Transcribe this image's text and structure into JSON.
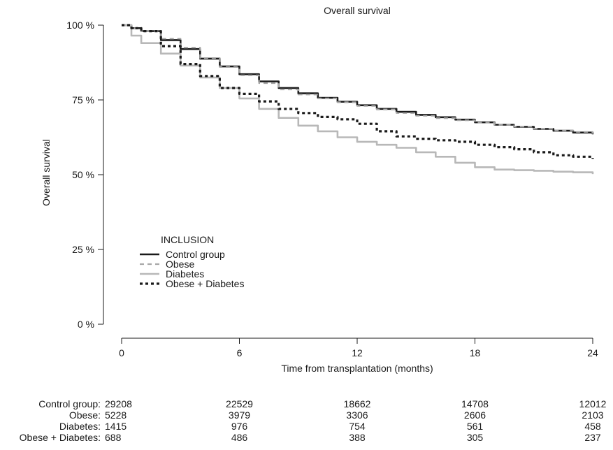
{
  "chart_data": {
    "type": "line",
    "title": "Overall survival",
    "xlabel": "Time from transplantation (months)",
    "ylabel": "Overall survival",
    "xlim": [
      0,
      24
    ],
    "ylim": [
      0,
      1
    ],
    "x_ticks": [
      0,
      6,
      12,
      18,
      24
    ],
    "y_ticks": [
      {
        "value": 0,
        "label": "0 %"
      },
      {
        "value": 0.25,
        "label": "25 %"
      },
      {
        "value": 0.5,
        "label": "50 %"
      },
      {
        "value": 0.75,
        "label": "75 %"
      },
      {
        "value": 1,
        "label": "100 %"
      }
    ],
    "grid": false,
    "legend": {
      "title": "INCLUSION",
      "position": "lower-left"
    },
    "series": [
      {
        "name": "Control group",
        "color": "#1a1a1a",
        "style": "solid",
        "x": [
          0,
          0.5,
          1,
          2,
          3,
          4,
          5,
          6,
          7,
          8,
          9,
          10,
          11,
          12,
          13,
          14,
          15,
          16,
          17,
          18,
          19,
          20,
          21,
          22,
          23,
          24
        ],
        "y": [
          1.0,
          0.99,
          0.98,
          0.95,
          0.92,
          0.888,
          0.862,
          0.836,
          0.812,
          0.79,
          0.772,
          0.757,
          0.744,
          0.732,
          0.72,
          0.71,
          0.7,
          0.692,
          0.684,
          0.675,
          0.667,
          0.66,
          0.653,
          0.647,
          0.641,
          0.635
        ]
      },
      {
        "name": "Obese",
        "color": "#a8a8a8",
        "style": "dashed",
        "x": [
          0,
          0.5,
          1,
          2,
          3,
          4,
          5,
          6,
          7,
          8,
          9,
          10,
          11,
          12,
          13,
          14,
          15,
          16,
          17,
          18,
          19,
          20,
          21,
          22,
          23,
          24
        ],
        "y": [
          1.0,
          0.99,
          0.98,
          0.955,
          0.925,
          0.89,
          0.86,
          0.832,
          0.806,
          0.785,
          0.768,
          0.755,
          0.742,
          0.73,
          0.718,
          0.706,
          0.697,
          0.689,
          0.682,
          0.674,
          0.667,
          0.661,
          0.654,
          0.648,
          0.643,
          0.637
        ]
      },
      {
        "name": "Diabetes",
        "color": "#b8b8b8",
        "style": "solid",
        "x": [
          0,
          0.5,
          1,
          2,
          3,
          4,
          5,
          6,
          7,
          8,
          9,
          10,
          11,
          12,
          13,
          14,
          15,
          16,
          17,
          18,
          19,
          20,
          21,
          22,
          23,
          24
        ],
        "y": [
          1.0,
          0.965,
          0.94,
          0.905,
          0.865,
          0.825,
          0.79,
          0.755,
          0.72,
          0.69,
          0.664,
          0.645,
          0.625,
          0.61,
          0.6,
          0.59,
          0.575,
          0.56,
          0.54,
          0.525,
          0.517,
          0.515,
          0.513,
          0.51,
          0.508,
          0.502
        ]
      },
      {
        "name": "Obese + Diabetes",
        "color": "#1a1a1a",
        "style": "dotted",
        "x": [
          0,
          0.5,
          1,
          2,
          3,
          4,
          5,
          6,
          7,
          8,
          9,
          10,
          11,
          12,
          13,
          14,
          15,
          16,
          17,
          18,
          19,
          20,
          21,
          22,
          23,
          24
        ],
        "y": [
          1.0,
          0.99,
          0.98,
          0.93,
          0.87,
          0.83,
          0.79,
          0.77,
          0.745,
          0.72,
          0.706,
          0.693,
          0.685,
          0.67,
          0.645,
          0.628,
          0.62,
          0.615,
          0.61,
          0.6,
          0.592,
          0.585,
          0.575,
          0.565,
          0.56,
          0.553
        ]
      }
    ],
    "risk_table": {
      "times": [
        0,
        6,
        12,
        18,
        24
      ],
      "rows": [
        {
          "label": "Control group:",
          "values": [
            "29208",
            "22529",
            "18662",
            "14708",
            "12012"
          ]
        },
        {
          "label": "Obese:",
          "values": [
            "5228",
            "3979",
            "3306",
            "2606",
            "2103"
          ]
        },
        {
          "label": "Diabetes:",
          "values": [
            "1415",
            "976",
            "754",
            "561",
            "458"
          ]
        },
        {
          "label": "Obese + Diabetes:",
          "values": [
            "688",
            "486",
            "388",
            "305",
            "237"
          ]
        }
      ]
    }
  }
}
